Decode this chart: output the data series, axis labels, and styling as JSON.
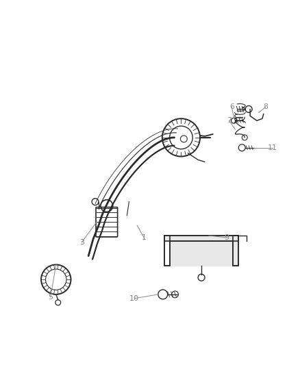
{
  "background_color": "#ffffff",
  "line_color": "#2a2a2a",
  "label_color": "#888888",
  "figsize": [
    4.39,
    5.33
  ],
  "dpi": 100
}
